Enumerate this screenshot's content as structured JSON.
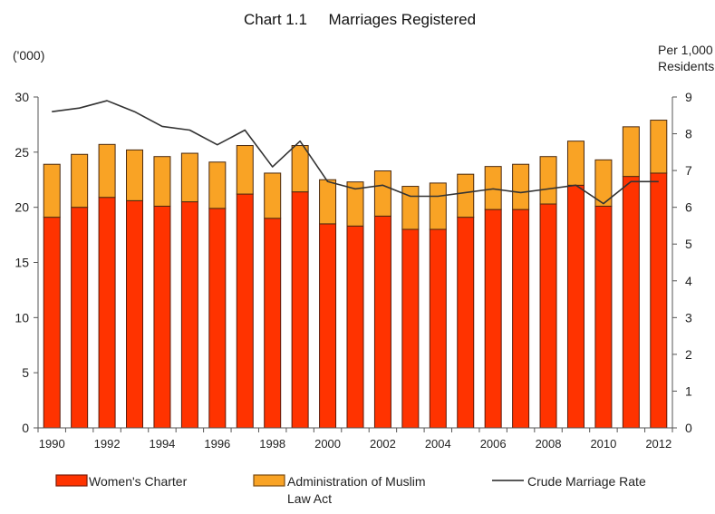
{
  "chart_data": {
    "type": "bar",
    "title": "Chart 1.1     Marriages Registered",
    "ylabel_left": "('000)",
    "ylabel_right": [
      "Per 1,000",
      "Residents"
    ],
    "xlabel": "",
    "categories": [
      "1990",
      "1991",
      "1992",
      "1993",
      "1994",
      "1995",
      "1996",
      "1997",
      "1998",
      "1999",
      "2000",
      "2001",
      "2002",
      "2003",
      "2004",
      "2005",
      "2006",
      "2007",
      "2008",
      "2009",
      "2010",
      "2011",
      "2012"
    ],
    "x_tick_labels": [
      "1990",
      "1992",
      "1994",
      "1996",
      "1998",
      "2000",
      "2002",
      "2004",
      "2006",
      "2008",
      "2010",
      "2012"
    ],
    "ylim_left": [
      0,
      30
    ],
    "yticks_left": [
      0,
      5,
      10,
      15,
      20,
      25,
      30
    ],
    "ylim_right": [
      0,
      9
    ],
    "yticks_right": [
      0,
      1,
      2,
      3,
      4,
      5,
      6,
      7,
      8,
      9
    ],
    "grid": false,
    "legend_position": "bottom",
    "series": [
      {
        "name": "Women's Charter",
        "kind": "stacked-bar",
        "axis": "left",
        "color": "#FF3300",
        "values": [
          19.1,
          20.0,
          20.9,
          20.6,
          20.1,
          20.5,
          19.9,
          21.2,
          19.0,
          21.4,
          18.5,
          18.3,
          19.2,
          18.0,
          18.0,
          19.1,
          19.8,
          19.8,
          20.3,
          22.0,
          20.1,
          22.8,
          23.1
        ]
      },
      {
        "name": "Administration of Muslim Law Act",
        "legend_lines": [
          "Administration of Muslim",
          "Law Act"
        ],
        "kind": "stacked-bar",
        "axis": "left",
        "color": "#F9A325",
        "values": [
          4.8,
          4.8,
          4.8,
          4.6,
          4.5,
          4.4,
          4.2,
          4.4,
          4.1,
          4.2,
          4.0,
          4.0,
          4.1,
          3.9,
          4.2,
          3.9,
          3.9,
          4.1,
          4.3,
          4.0,
          4.2,
          4.5,
          4.8
        ]
      },
      {
        "name": "Crude Marriage Rate",
        "kind": "line",
        "axis": "right",
        "color": "#333333",
        "values": [
          8.6,
          8.7,
          8.9,
          8.6,
          8.2,
          8.1,
          7.7,
          8.1,
          7.1,
          7.8,
          6.7,
          6.5,
          6.6,
          6.3,
          6.3,
          6.4,
          6.5,
          6.4,
          6.5,
          6.6,
          6.1,
          6.7,
          6.7
        ]
      }
    ]
  }
}
